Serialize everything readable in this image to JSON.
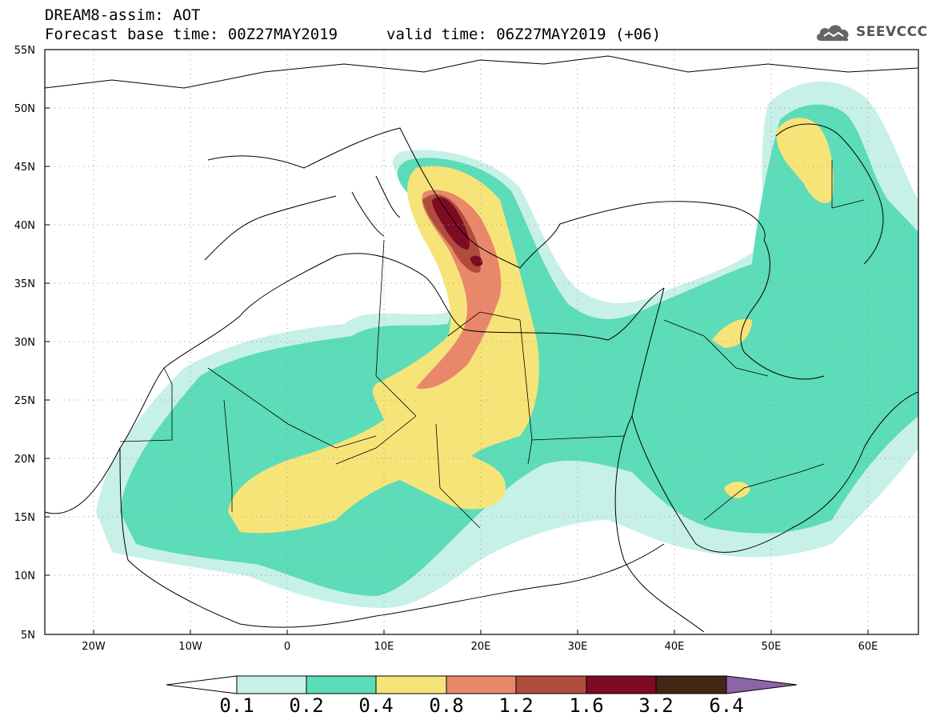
{
  "header": {
    "title": "DREAM8-assim: AOT",
    "base_time": "Forecast base time: 00Z27MAY2019",
    "valid_time": "valid time: 06Z27MAY2019 (+06)"
  },
  "logo": {
    "text": "SEEVCCC",
    "icon": "cloud-icon"
  },
  "map": {
    "projection": "lat-lon",
    "lon_range": [
      -25,
      65
    ],
    "lat_range": [
      5,
      55
    ],
    "lat_labels": [
      "55N",
      "50N",
      "45N",
      "40N",
      "35N",
      "30N",
      "25N",
      "20N",
      "15N",
      "10N",
      "5N"
    ],
    "lon_labels": [
      "20W",
      "10W",
      "0",
      "10E",
      "20E",
      "30E",
      "40E",
      "50E",
      "60E"
    ],
    "grid": "dotted"
  },
  "colorbar": {
    "levels": [
      "0.1",
      "0.2",
      "0.4",
      "0.8",
      "1.2",
      "1.6",
      "3.2",
      "6.4"
    ],
    "colors": [
      "#ffffff",
      "#c7f0e8",
      "#5cdcb8",
      "#f7e479",
      "#e8876a",
      "#b04c3c",
      "#7f0a24",
      "#3f2716",
      "#8e64a8"
    ]
  }
}
